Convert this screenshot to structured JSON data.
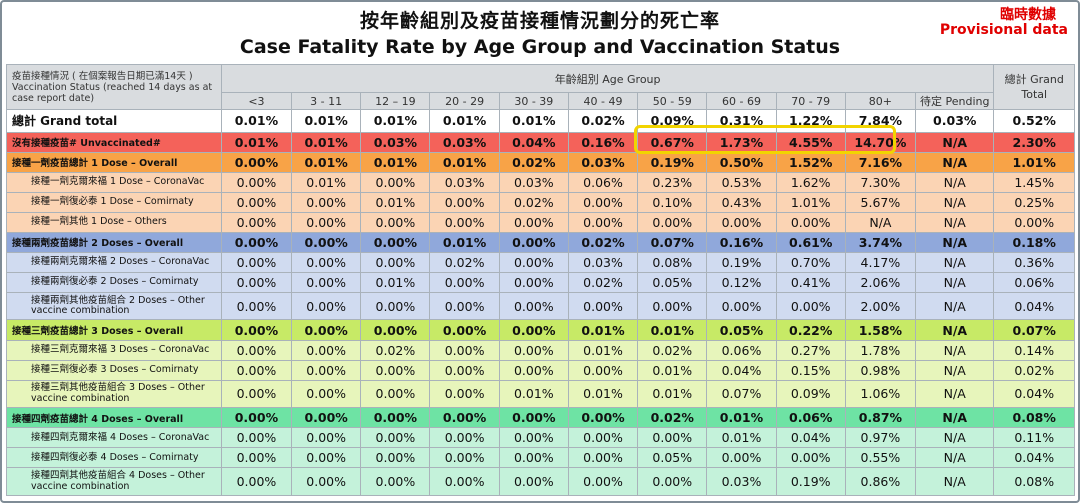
{
  "title_cn": "按年齡組別及疫苗接種情況劃分的死亡率",
  "title_en": "Case Fatality Rate by Age Group and Vaccination Status",
  "provisional_cn": "臨時數據",
  "provisional_en": "Provisional data",
  "colors": {
    "grand": "#ffffff",
    "unvaccinated": "#f4625a",
    "dose1_overall": "#f8a347",
    "dose1_sub": "#fbd4b4",
    "dose2_overall": "#90a8db",
    "dose2_sub": "#d0dbf0",
    "dose3_overall": "#c7ea66",
    "dose3_sub": "#e7f5bb",
    "dose4_overall": "#6ee3a4",
    "dose4_sub": "#c4f2da",
    "highlight_box": "#f2d400",
    "provisional_text": "#e00000"
  },
  "header": {
    "status_label": "疫苗接種情況 ( 在個案報告日期已滿14天 ) Vaccination Status (reached 14 days as at case report date)",
    "age_group_label": "年齡組別 Age Group",
    "grand_total_label": "總計 Grand Total",
    "age_groups": [
      "<3",
      "3 - 11",
      "12 – 19",
      "20 - 29",
      "30 - 39",
      "40 - 49",
      "50 - 59",
      "60 - 69",
      "70 - 79",
      "80+",
      "待定 Pending"
    ]
  },
  "chart_data": {
    "type": "table",
    "title": "按年齡組別及疫苗接種情況劃分的死亡率 Case Fatality Rate by Age Group and Vaccination Status",
    "columns": [
      "<3",
      "3 - 11",
      "12 – 19",
      "20 - 29",
      "30 - 39",
      "40 - 49",
      "50 - 59",
      "60 - 69",
      "70 - 79",
      "80+",
      "待定 Pending",
      "總計 Grand Total"
    ],
    "highlight": {
      "row": "沒有接種疫苗# Unvaccinated#",
      "columns": [
        "50 - 59",
        "60 - 69",
        "70 - 79",
        "80+"
      ]
    },
    "rows": [
      {
        "label": "總計 Grand total",
        "level": "grand",
        "values": [
          "0.01%",
          "0.01%",
          "0.01%",
          "0.01%",
          "0.01%",
          "0.02%",
          "0.09%",
          "0.31%",
          "1.22%",
          "7.84%",
          "0.03%",
          "0.52%"
        ]
      },
      {
        "label": "沒有接種疫苗# Unvaccinated#",
        "level": "unvaccinated",
        "values": [
          "0.01%",
          "0.01%",
          "0.03%",
          "0.03%",
          "0.04%",
          "0.16%",
          "0.67%",
          "1.73%",
          "4.55%",
          "14.70%",
          "N/A",
          "2.30%"
        ]
      },
      {
        "label": "接種一劑疫苗總計 1 Dose – Overall",
        "level": "dose1_overall",
        "values": [
          "0.00%",
          "0.01%",
          "0.01%",
          "0.01%",
          "0.02%",
          "0.03%",
          "0.19%",
          "0.50%",
          "1.52%",
          "7.16%",
          "N/A",
          "1.01%"
        ]
      },
      {
        "label": "接種一劑克爾來福 1 Dose – CoronaVac",
        "level": "dose1_sub",
        "values": [
          "0.00%",
          "0.01%",
          "0.00%",
          "0.03%",
          "0.03%",
          "0.06%",
          "0.23%",
          "0.53%",
          "1.62%",
          "7.30%",
          "N/A",
          "1.45%"
        ]
      },
      {
        "label": "接種一劑復必泰 1 Dose – Comirnaty",
        "level": "dose1_sub",
        "values": [
          "0.00%",
          "0.00%",
          "0.01%",
          "0.00%",
          "0.02%",
          "0.00%",
          "0.10%",
          "0.43%",
          "1.01%",
          "5.67%",
          "N/A",
          "0.25%"
        ]
      },
      {
        "label": "接種一劑其他 1 Dose – Others",
        "level": "dose1_sub",
        "values": [
          "0.00%",
          "0.00%",
          "0.00%",
          "0.00%",
          "0.00%",
          "0.00%",
          "0.00%",
          "0.00%",
          "0.00%",
          "N/A",
          "N/A",
          "0.00%"
        ]
      },
      {
        "label": "接種兩劑疫苗總計 2 Doses – Overall",
        "level": "dose2_overall",
        "values": [
          "0.00%",
          "0.00%",
          "0.00%",
          "0.01%",
          "0.00%",
          "0.02%",
          "0.07%",
          "0.16%",
          "0.61%",
          "3.74%",
          "N/A",
          "0.18%"
        ]
      },
      {
        "label": "接種兩劑克爾來福 2 Doses – CoronaVac",
        "level": "dose2_sub",
        "values": [
          "0.00%",
          "0.00%",
          "0.00%",
          "0.02%",
          "0.00%",
          "0.03%",
          "0.08%",
          "0.19%",
          "0.70%",
          "4.17%",
          "N/A",
          "0.36%"
        ]
      },
      {
        "label": "接種兩劑復必泰 2 Doses – Comirnaty",
        "level": "dose2_sub",
        "values": [
          "0.00%",
          "0.00%",
          "0.01%",
          "0.00%",
          "0.00%",
          "0.02%",
          "0.05%",
          "0.12%",
          "0.41%",
          "2.06%",
          "N/A",
          "0.06%"
        ]
      },
      {
        "label": "接種兩劑其他疫苗組合 2 Doses – Other vaccine combination",
        "level": "dose2_sub",
        "values": [
          "0.00%",
          "0.00%",
          "0.00%",
          "0.00%",
          "0.00%",
          "0.00%",
          "0.00%",
          "0.00%",
          "0.00%",
          "2.00%",
          "N/A",
          "0.04%"
        ]
      },
      {
        "label": "接種三劑疫苗總計 3 Doses – Overall",
        "level": "dose3_overall",
        "values": [
          "0.00%",
          "0.00%",
          "0.00%",
          "0.00%",
          "0.00%",
          "0.01%",
          "0.01%",
          "0.05%",
          "0.22%",
          "1.58%",
          "N/A",
          "0.07%"
        ]
      },
      {
        "label": "接種三劑克爾來福 3 Doses – CoronaVac",
        "level": "dose3_sub",
        "values": [
          "0.00%",
          "0.00%",
          "0.02%",
          "0.00%",
          "0.00%",
          "0.01%",
          "0.02%",
          "0.06%",
          "0.27%",
          "1.78%",
          "N/A",
          "0.14%"
        ]
      },
      {
        "label": "接種三劑復必泰 3 Doses – Comirnaty",
        "level": "dose3_sub",
        "values": [
          "0.00%",
          "0.00%",
          "0.00%",
          "0.00%",
          "0.00%",
          "0.00%",
          "0.01%",
          "0.04%",
          "0.15%",
          "0.98%",
          "N/A",
          "0.02%"
        ]
      },
      {
        "label": "接種三劑其他疫苗組合 3 Doses – Other vaccine combination",
        "level": "dose3_sub",
        "values": [
          "0.00%",
          "0.00%",
          "0.00%",
          "0.00%",
          "0.01%",
          "0.01%",
          "0.01%",
          "0.07%",
          "0.09%",
          "1.06%",
          "N/A",
          "0.04%"
        ]
      },
      {
        "label": "接種四劑疫苗總計 4 Doses – Overall",
        "level": "dose4_overall",
        "values": [
          "0.00%",
          "0.00%",
          "0.00%",
          "0.00%",
          "0.00%",
          "0.00%",
          "0.02%",
          "0.01%",
          "0.06%",
          "0.87%",
          "N/A",
          "0.08%"
        ]
      },
      {
        "label": "接種四劑克爾來福 4 Doses – CoronaVac",
        "level": "dose4_sub",
        "values": [
          "0.00%",
          "0.00%",
          "0.00%",
          "0.00%",
          "0.00%",
          "0.00%",
          "0.00%",
          "0.01%",
          "0.04%",
          "0.97%",
          "N/A",
          "0.11%"
        ]
      },
      {
        "label": "接種四劑復必泰 4 Doses – Comirnaty",
        "level": "dose4_sub",
        "values": [
          "0.00%",
          "0.00%",
          "0.00%",
          "0.00%",
          "0.00%",
          "0.00%",
          "0.05%",
          "0.00%",
          "0.00%",
          "0.55%",
          "N/A",
          "0.04%"
        ]
      },
      {
        "label": "接種四劑其他疫苗組合 4 Doses – Other vaccine combination",
        "level": "dose4_sub",
        "values": [
          "0.00%",
          "0.00%",
          "0.00%",
          "0.00%",
          "0.00%",
          "0.00%",
          "0.00%",
          "0.03%",
          "0.19%",
          "0.86%",
          "N/A",
          "0.08%"
        ]
      }
    ]
  }
}
